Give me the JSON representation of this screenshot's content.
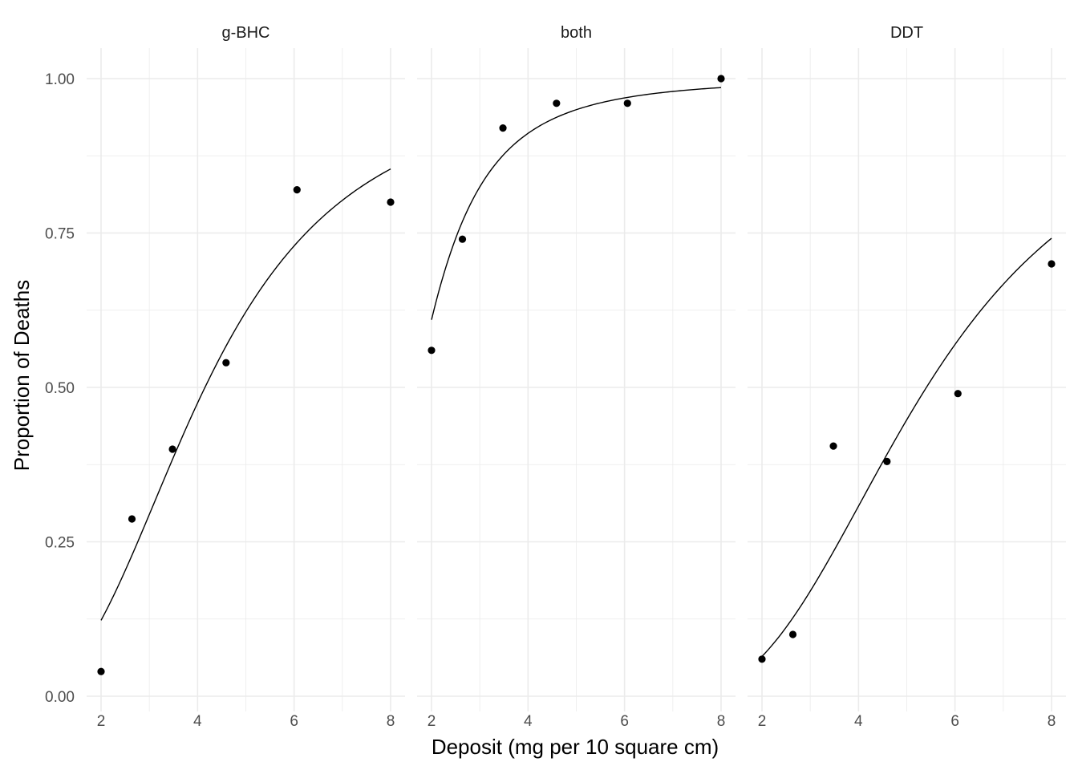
{
  "chart_data": {
    "type": "scatter",
    "facet": "panels",
    "xlabel": "Deposit (mg per 10 square cm)",
    "ylabel": "Proportion of Deaths",
    "xlim": [
      1.7,
      8.3
    ],
    "ylim": [
      -0.03,
      1.05
    ],
    "xticks": [
      2,
      4,
      6,
      8
    ],
    "xtick_labels": [
      "2",
      "4",
      "6",
      "8"
    ],
    "yticks": [
      0,
      0.25,
      0.5,
      0.75,
      1
    ],
    "ytick_labels": [
      "0.00",
      "0.25",
      "0.50",
      "0.75",
      "1.00"
    ],
    "grid": true,
    "point_color": "#000000",
    "line_color": "#000000",
    "grid_color": "#ebebeb",
    "panels": [
      {
        "label": "g-BHC",
        "x": [
          2.0,
          2.64,
          3.48,
          4.59,
          6.06,
          8.0
        ],
        "y": [
          0.04,
          0.287,
          0.4,
          0.54,
          0.82,
          0.8
        ],
        "fit": {
          "model": "logistic on log(deposit)",
          "intercept": -3.83,
          "slope": 2.69
        }
      },
      {
        "label": "both",
        "x": [
          2.0,
          2.64,
          3.48,
          4.59,
          6.06,
          8.0
        ],
        "y": [
          0.56,
          0.74,
          0.92,
          0.96,
          0.96,
          1.0
        ],
        "fit": {
          "model": "logistic on log(deposit)",
          "intercept": -1.44,
          "slope": 2.72
        }
      },
      {
        "label": "DDT",
        "x": [
          2.0,
          2.64,
          3.48,
          4.59,
          6.06,
          8.0
        ],
        "y": [
          0.06,
          0.1,
          0.405,
          0.38,
          0.49,
          0.7
        ],
        "fit": {
          "model": "logistic on log(deposit)",
          "intercept": -4.54,
          "slope": 2.69
        }
      }
    ]
  }
}
